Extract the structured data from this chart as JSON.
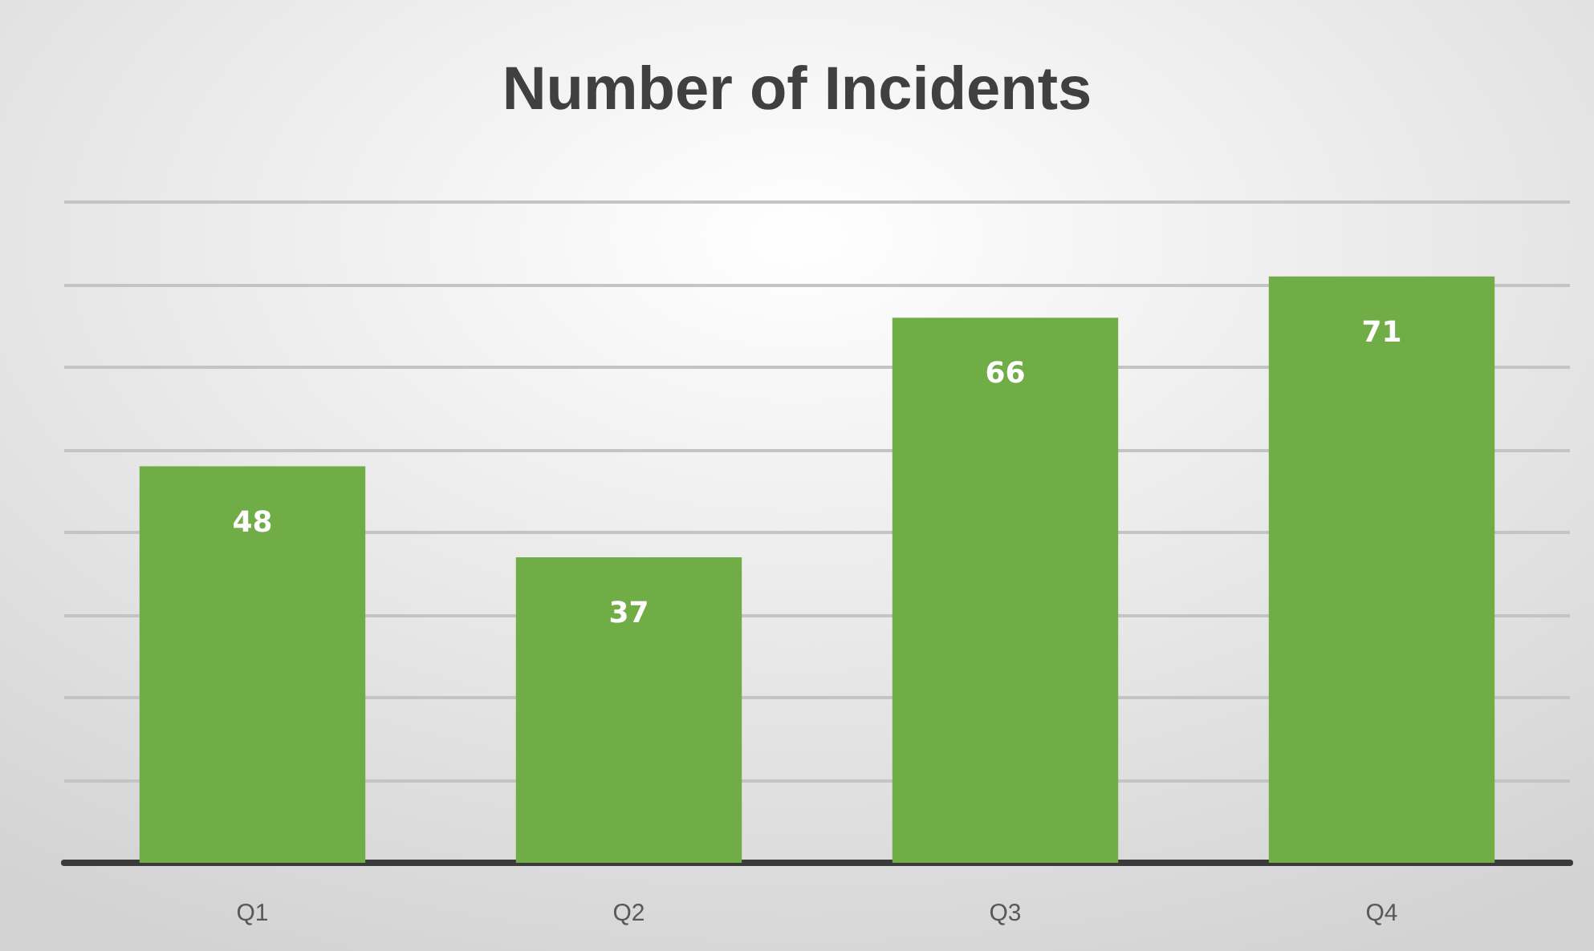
{
  "chart_data": {
    "type": "bar",
    "title": "Number of Incidents",
    "categories": [
      "Q1",
      "Q2",
      "Q3",
      "Q4"
    ],
    "values": [
      48,
      37,
      66,
      71
    ],
    "color": "#70ad47",
    "ylim": [
      0,
      80
    ],
    "yticks": [
      0,
      10,
      20,
      30,
      40,
      50,
      60,
      70,
      80
    ],
    "grid": "y",
    "tick_labels": "x",
    "data_labels": true
  }
}
